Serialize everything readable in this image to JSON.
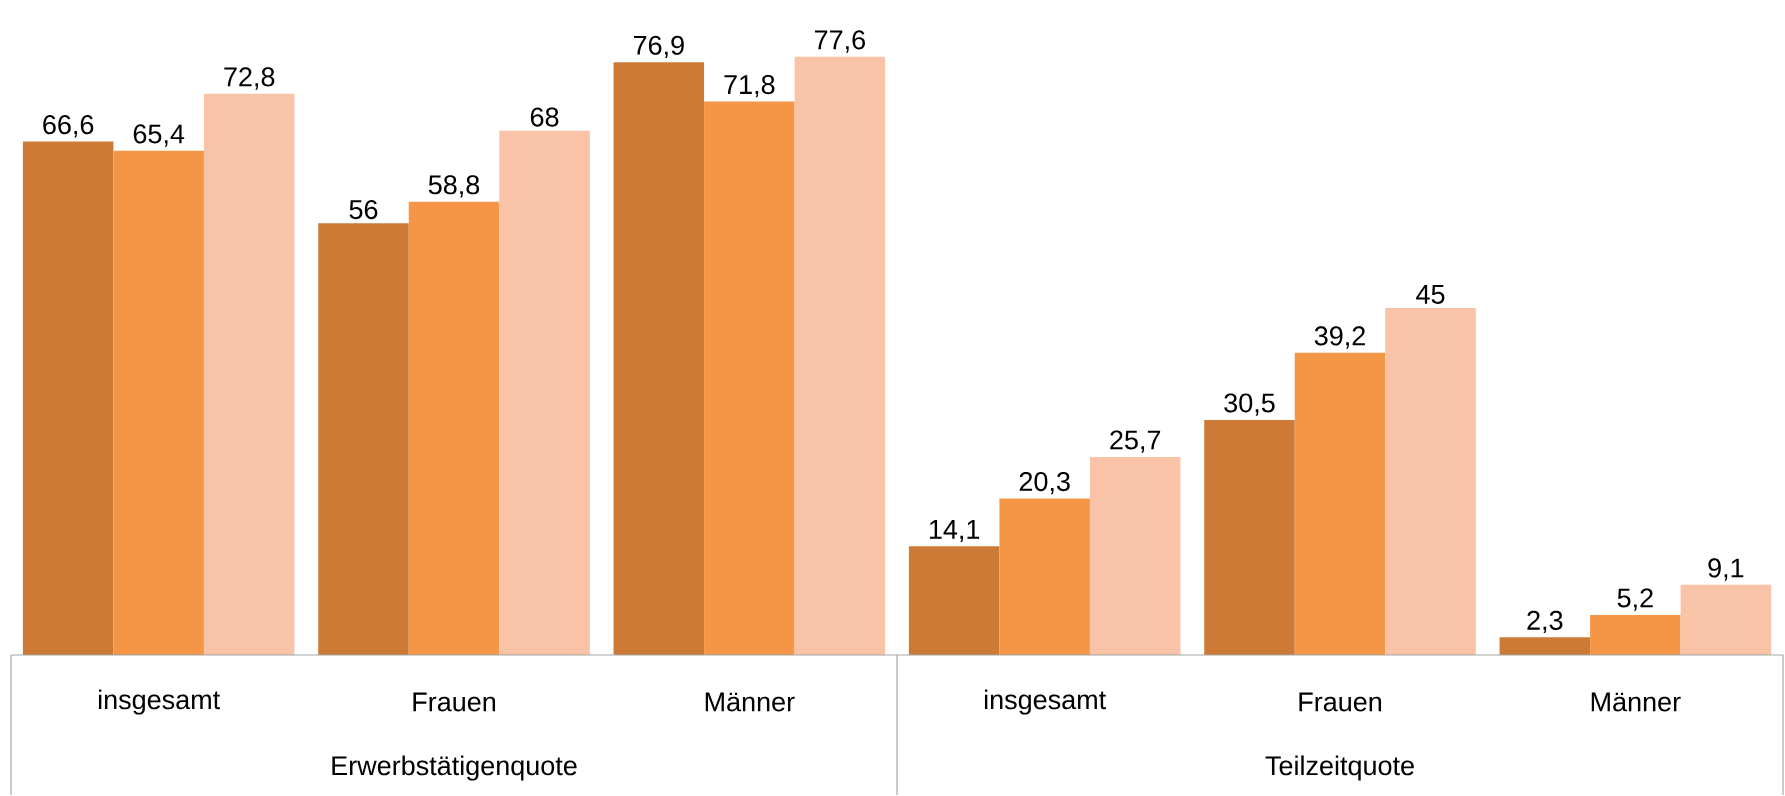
{
  "chart_data": {
    "type": "bar",
    "relative": false,
    "categories": [
      "insgesamt",
      "Frauen",
      "Männer",
      "insgesamt",
      "Frauen",
      "Männer"
    ],
    "series": [
      {
        "color": "#cd7a37",
        "values": [
          66.6,
          56,
          76.9,
          14.1,
          30.5,
          2.3
        ],
        "value_labels": [
          "66,6",
          "56",
          "76,9",
          "14,1",
          "30,5",
          "2,3"
        ]
      },
      {
        "color": "#f59647",
        "values": [
          65.4,
          58.8,
          71.8,
          20.3,
          39.2,
          5.2
        ],
        "value_labels": [
          "65,4",
          "58,8",
          "71,8",
          "20,3",
          "39,2",
          "5,2"
        ]
      },
      {
        "color": "#f9c3a7",
        "values": [
          72.8,
          68,
          77.6,
          25.7,
          45,
          9.1
        ],
        "value_labels": [
          "72,8",
          "68",
          "77,6",
          "25,7",
          "45",
          "9,1"
        ]
      }
    ],
    "annotations": [
      "Erwerbstätigenquote",
      "Teilzeitquote"
    ]
  }
}
